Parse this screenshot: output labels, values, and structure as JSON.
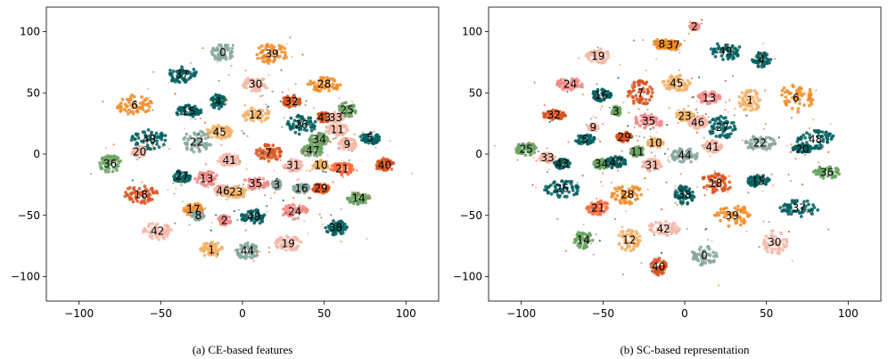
{
  "palette": [
    "#005f5f",
    "#f28c28",
    "#f5b9a8",
    "#6aa363",
    "#d9531e",
    "#f4b266",
    "#88a89f",
    "#f28c88",
    "#ff6a3d"
  ],
  "chart_data": [
    {
      "type": "scatter",
      "caption": "(a) CE-based features",
      "xlim": [
        -120,
        120
      ],
      "ylim": [
        -120,
        120
      ],
      "xticks": [
        -100,
        -50,
        0,
        50,
        100
      ],
      "yticks": [
        -100,
        -50,
        0,
        50,
        100
      ],
      "xtick_labels": [
        "−100",
        "−50",
        "0",
        "50",
        "100"
      ],
      "ytick_labels": [
        "−100",
        "−50",
        "0",
        "50",
        "100"
      ],
      "grid": false,
      "clusters": [
        {
          "label": "0",
          "x": -12,
          "y": 83,
          "rx": 7,
          "ry": 7,
          "color": 6
        },
        {
          "label": "39",
          "x": 18,
          "y": 82,
          "rx": 10,
          "ry": 8,
          "color": 1
        },
        {
          "label": "37",
          "x": -37,
          "y": 65,
          "rx": 9,
          "ry": 7,
          "color": 0
        },
        {
          "label": "30",
          "x": 8,
          "y": 57,
          "rx": 8,
          "ry": 6,
          "color": 2
        },
        {
          "label": "28",
          "x": 50,
          "y": 57,
          "rx": 10,
          "ry": 6,
          "color": 1
        },
        {
          "label": "6",
          "x": -66,
          "y": 40,
          "rx": 11,
          "ry": 9,
          "color": 1
        },
        {
          "label": "4",
          "x": -15,
          "y": 43,
          "rx": 5,
          "ry": 6,
          "color": 0
        },
        {
          "label": "32",
          "x": 30,
          "y": 43,
          "rx": 6,
          "ry": 5,
          "color": 4
        },
        {
          "label": "15",
          "x": -33,
          "y": 35,
          "rx": 8,
          "ry": 5,
          "color": 0
        },
        {
          "label": "12",
          "x": 8,
          "y": 32,
          "rx": 9,
          "ry": 6,
          "color": 5
        },
        {
          "label": "25",
          "x": 64,
          "y": 36,
          "rx": 6,
          "ry": 6,
          "color": 3
        },
        {
          "label": "43",
          "x": 50,
          "y": 30,
          "rx": 5,
          "ry": 4,
          "color": 4
        },
        {
          "label": "33",
          "x": 57,
          "y": 30,
          "rx": 5,
          "ry": 4,
          "color": 2
        },
        {
          "label": "26",
          "x": 36,
          "y": 24,
          "rx": 9,
          "ry": 8,
          "color": 0
        },
        {
          "label": "45",
          "x": -14,
          "y": 18,
          "rx": 8,
          "ry": 6,
          "color": 5
        },
        {
          "label": "11",
          "x": 58,
          "y": 20,
          "rx": 7,
          "ry": 5,
          "color": 2
        },
        {
          "label": "48",
          "x": -57,
          "y": 12,
          "rx": 11,
          "ry": 8,
          "color": 0
        },
        {
          "label": "22",
          "x": -28,
          "y": 10,
          "rx": 9,
          "ry": 9,
          "color": 6
        },
        {
          "label": "34",
          "x": 47,
          "y": 12,
          "rx": 6,
          "ry": 5,
          "color": 3
        },
        {
          "label": "5",
          "x": 78,
          "y": 13,
          "rx": 6,
          "ry": 5,
          "color": 0
        },
        {
          "label": "9",
          "x": 64,
          "y": 8,
          "rx": 6,
          "ry": 5,
          "color": 2
        },
        {
          "label": "20",
          "x": -63,
          "y": 2,
          "rx": 5,
          "ry": 4,
          "color": 2
        },
        {
          "label": "47",
          "x": 43,
          "y": 3,
          "rx": 7,
          "ry": 5,
          "color": 3
        },
        {
          "label": "7",
          "x": 16,
          "y": 1,
          "rx": 8,
          "ry": 7,
          "color": 4
        },
        {
          "label": "36",
          "x": -81,
          "y": -8,
          "rx": 7,
          "ry": 7,
          "color": 3
        },
        {
          "label": "41",
          "x": -8,
          "y": -5,
          "rx": 7,
          "ry": 5,
          "color": 2
        },
        {
          "label": "31",
          "x": 31,
          "y": -9,
          "rx": 6,
          "ry": 5,
          "color": 2
        },
        {
          "label": "10",
          "x": 48,
          "y": -9,
          "rx": 5,
          "ry": 4,
          "color": 5
        },
        {
          "label": "21",
          "x": 61,
          "y": -12,
          "rx": 7,
          "ry": 5,
          "color": 8
        },
        {
          "label": "40",
          "x": 87,
          "y": -9,
          "rx": 6,
          "ry": 5,
          "color": 4
        },
        {
          "label": "27",
          "x": -37,
          "y": -18,
          "rx": 6,
          "ry": 5,
          "color": 0
        },
        {
          "label": "13",
          "x": -22,
          "y": -20,
          "rx": 7,
          "ry": 6,
          "color": 7
        },
        {
          "label": "35",
          "x": 8,
          "y": -24,
          "rx": 8,
          "ry": 5,
          "color": 7
        },
        {
          "label": "3",
          "x": 21,
          "y": -25,
          "rx": 3,
          "ry": 4,
          "color": 6
        },
        {
          "label": "46",
          "x": -12,
          "y": -30,
          "rx": 6,
          "ry": 4,
          "color": 2
        },
        {
          "label": "23",
          "x": -4,
          "y": -31,
          "rx": 7,
          "ry": 5,
          "color": 5
        },
        {
          "label": "16",
          "x": 36,
          "y": -28,
          "rx": 5,
          "ry": 4,
          "color": 6
        },
        {
          "label": "29",
          "x": 48,
          "y": -28,
          "rx": 5,
          "ry": 4,
          "color": 4
        },
        {
          "label": "18",
          "x": -62,
          "y": -33,
          "rx": 10,
          "ry": 8,
          "color": 4
        },
        {
          "label": "14",
          "x": 71,
          "y": -36,
          "rx": 7,
          "ry": 5,
          "color": 3
        },
        {
          "label": "17",
          "x": -30,
          "y": -45,
          "rx": 6,
          "ry": 5,
          "color": 1
        },
        {
          "label": "8",
          "x": -27,
          "y": -50,
          "rx": 4,
          "ry": 4,
          "color": 6
        },
        {
          "label": "24",
          "x": 32,
          "y": -47,
          "rx": 8,
          "ry": 6,
          "color": 7
        },
        {
          "label": "49",
          "x": 7,
          "y": -51,
          "rx": 8,
          "ry": 6,
          "color": 0
        },
        {
          "label": "2",
          "x": -11,
          "y": -54,
          "rx": 4,
          "ry": 4,
          "color": 7
        },
        {
          "label": "42",
          "x": -52,
          "y": -63,
          "rx": 9,
          "ry": 7,
          "color": 2
        },
        {
          "label": "38",
          "x": 57,
          "y": -60,
          "rx": 7,
          "ry": 6,
          "color": 0
        },
        {
          "label": "19",
          "x": 28,
          "y": -73,
          "rx": 8,
          "ry": 6,
          "color": 2
        },
        {
          "label": "1",
          "x": -19,
          "y": -78,
          "rx": 7,
          "ry": 6,
          "color": 5
        },
        {
          "label": "44",
          "x": 3,
          "y": -79,
          "rx": 7,
          "ry": 7,
          "color": 6
        }
      ]
    },
    {
      "type": "scatter",
      "caption": "(b) SC-based representation",
      "xlim": [
        -120,
        120
      ],
      "ylim": [
        -120,
        120
      ],
      "xticks": [
        -100,
        -50,
        0,
        50,
        100
      ],
      "yticks": [
        -100,
        -50,
        0,
        50,
        100
      ],
      "xtick_labels": [
        "−100",
        "−50",
        "0",
        "50",
        "100"
      ],
      "ytick_labels": [
        "−100",
        "−50",
        "0",
        "50",
        "100"
      ],
      "grid": false,
      "clusters": [
        {
          "label": "2",
          "x": 6,
          "y": 104,
          "rx": 3,
          "ry": 3,
          "color": 7
        },
        {
          "label": "8",
          "x": -14,
          "y": 90,
          "rx": 5,
          "ry": 4,
          "color": 1
        },
        {
          "label": "37",
          "x": -7,
          "y": 89,
          "rx": 5,
          "ry": 4,
          "color": 1
        },
        {
          "label": "19",
          "x": -53,
          "y": 80,
          "rx": 8,
          "ry": 6,
          "color": 2
        },
        {
          "label": "49",
          "x": 25,
          "y": 84,
          "rx": 10,
          "ry": 7,
          "color": 0
        },
        {
          "label": "4",
          "x": 47,
          "y": 77,
          "rx": 6,
          "ry": 6,
          "color": 0
        },
        {
          "label": "24",
          "x": -70,
          "y": 57,
          "rx": 9,
          "ry": 5,
          "color": 7
        },
        {
          "label": "16",
          "x": -51,
          "y": 48,
          "rx": 6,
          "ry": 5,
          "color": 0
        },
        {
          "label": "7",
          "x": -27,
          "y": 50,
          "rx": 8,
          "ry": 10,
          "color": 4
        },
        {
          "label": "45",
          "x": -5,
          "y": 58,
          "rx": 9,
          "ry": 7,
          "color": 5
        },
        {
          "label": "6",
          "x": 68,
          "y": 46,
          "rx": 11,
          "ry": 12,
          "color": 1
        },
        {
          "label": "13",
          "x": 15,
          "y": 46,
          "rx": 7,
          "ry": 5,
          "color": 7
        },
        {
          "label": "1",
          "x": 40,
          "y": 44,
          "rx": 7,
          "ry": 9,
          "color": 5
        },
        {
          "label": "32",
          "x": -80,
          "y": 32,
          "rx": 7,
          "ry": 4,
          "color": 4
        },
        {
          "label": "3",
          "x": -42,
          "y": 35,
          "rx": 3,
          "ry": 4,
          "color": 3
        },
        {
          "label": "23",
          "x": 0,
          "y": 31,
          "rx": 6,
          "ry": 4,
          "color": 5
        },
        {
          "label": "35",
          "x": -22,
          "y": 27,
          "rx": 9,
          "ry": 6,
          "color": 7
        },
        {
          "label": "46",
          "x": 8,
          "y": 26,
          "rx": 6,
          "ry": 5,
          "color": 2
        },
        {
          "label": "27",
          "x": 23,
          "y": 22,
          "rx": 9,
          "ry": 9,
          "color": 0
        },
        {
          "label": "9",
          "x": -56,
          "y": 22,
          "rx": 3,
          "ry": 3,
          "color": 2
        },
        {
          "label": "29",
          "x": -37,
          "y": 14,
          "rx": 5,
          "ry": 4,
          "color": 4
        },
        {
          "label": "5",
          "x": -61,
          "y": 12,
          "rx": 6,
          "ry": 4,
          "color": 0
        },
        {
          "label": "10",
          "x": -18,
          "y": 9,
          "rx": 5,
          "ry": 4,
          "color": 5
        },
        {
          "label": "22",
          "x": 46,
          "y": 9,
          "rx": 10,
          "ry": 6,
          "color": 6
        },
        {
          "label": "48",
          "x": 80,
          "y": 12,
          "rx": 12,
          "ry": 8,
          "color": 0
        },
        {
          "label": "41",
          "x": 17,
          "y": 6,
          "rx": 6,
          "ry": 5,
          "color": 2
        },
        {
          "label": "20",
          "x": 72,
          "y": 4,
          "rx": 6,
          "ry": 4,
          "color": 0
        },
        {
          "label": "11",
          "x": -29,
          "y": 2,
          "rx": 5,
          "ry": 4,
          "color": 3
        },
        {
          "label": "25",
          "x": -97,
          "y": 4,
          "rx": 7,
          "ry": 5,
          "color": 3
        },
        {
          "label": "44",
          "x": 0,
          "y": -1,
          "rx": 8,
          "ry": 6,
          "color": 6
        },
        {
          "label": "33",
          "x": -84,
          "y": -3,
          "rx": 5,
          "ry": 4,
          "color": 2
        },
        {
          "label": "43",
          "x": -75,
          "y": -8,
          "rx": 5,
          "ry": 4,
          "color": 0
        },
        {
          "label": "34",
          "x": -51,
          "y": -8,
          "rx": 5,
          "ry": 4,
          "color": 3
        },
        {
          "label": "47",
          "x": -42,
          "y": -7,
          "rx": 6,
          "ry": 5,
          "color": 0
        },
        {
          "label": "31",
          "x": -20,
          "y": -9,
          "rx": 6,
          "ry": 5,
          "color": 2
        },
        {
          "label": "36",
          "x": 87,
          "y": -15,
          "rx": 9,
          "ry": 5,
          "color": 3
        },
        {
          "label": "26",
          "x": -75,
          "y": -28,
          "rx": 11,
          "ry": 8,
          "color": 0
        },
        {
          "label": "18",
          "x": 19,
          "y": -24,
          "rx": 10,
          "ry": 8,
          "color": 4
        },
        {
          "label": "15",
          "x": 45,
          "y": -22,
          "rx": 7,
          "ry": 5,
          "color": 0
        },
        {
          "label": "28",
          "x": -35,
          "y": -33,
          "rx": 10,
          "ry": 8,
          "color": 1
        },
        {
          "label": "38",
          "x": 0,
          "y": -33,
          "rx": 6,
          "ry": 8,
          "color": 0
        },
        {
          "label": "21",
          "x": -53,
          "y": -44,
          "rx": 7,
          "ry": 6,
          "color": 8
        },
        {
          "label": "37",
          "x": 70,
          "y": -44,
          "rx": 12,
          "ry": 7,
          "color": 0
        },
        {
          "label": "39",
          "x": 29,
          "y": -50,
          "rx": 11,
          "ry": 9,
          "color": 1
        },
        {
          "label": "42",
          "x": -13,
          "y": -61,
          "rx": 10,
          "ry": 6,
          "color": 2
        },
        {
          "label": "14",
          "x": -62,
          "y": -70,
          "rx": 6,
          "ry": 7,
          "color": 3
        },
        {
          "label": "12",
          "x": -34,
          "y": -70,
          "rx": 7,
          "ry": 9,
          "color": 5
        },
        {
          "label": "30",
          "x": 55,
          "y": -72,
          "rx": 8,
          "ry": 10,
          "color": 2
        },
        {
          "label": "0",
          "x": 12,
          "y": -83,
          "rx": 8,
          "ry": 8,
          "color": 6
        },
        {
          "label": "40",
          "x": -16,
          "y": -92,
          "rx": 5,
          "ry": 7,
          "color": 4
        }
      ]
    }
  ]
}
